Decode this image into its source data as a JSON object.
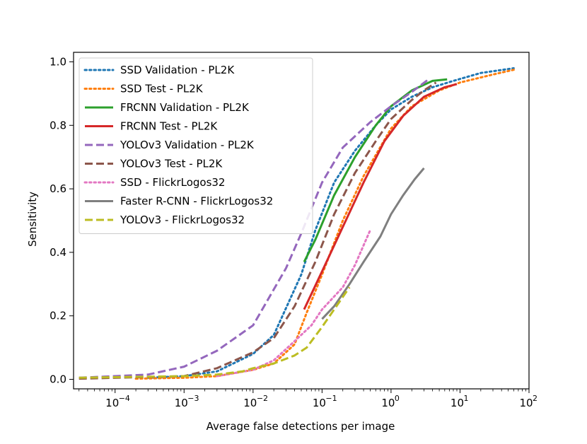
{
  "chart_data": {
    "type": "line",
    "title": "",
    "xlabel": "Average false detections per image",
    "ylabel": "Sensitivity",
    "xscale": "log",
    "xlim": [
      2.5e-05,
      100
    ],
    "ylim": [
      -0.03,
      1.03
    ],
    "grid": false,
    "legend_position": "top-left",
    "x_ticks": [
      {
        "value": 0.0001,
        "base": "10",
        "exp": "−4"
      },
      {
        "value": 0.001,
        "base": "10",
        "exp": "−3"
      },
      {
        "value": 0.01,
        "base": "10",
        "exp": "−2"
      },
      {
        "value": 0.1,
        "base": "10",
        "exp": "−1"
      },
      {
        "value": 1,
        "base": "10",
        "exp": "0"
      },
      {
        "value": 10,
        "base": "10",
        "exp": "1"
      },
      {
        "value": 100,
        "base": "10",
        "exp": "2"
      }
    ],
    "y_ticks": [
      {
        "value": 0.0,
        "label": "0.0"
      },
      {
        "value": 0.2,
        "label": "0.2"
      },
      {
        "value": 0.4,
        "label": "0.4"
      },
      {
        "value": 0.6,
        "label": "0.6"
      },
      {
        "value": 0.8,
        "label": "0.8"
      },
      {
        "value": 1.0,
        "label": "1.0"
      }
    ],
    "series": [
      {
        "name": "SSD Validation - PL2K",
        "color": "#1f77b4",
        "style": "dotted",
        "x": [
          0.0003,
          0.001,
          0.003,
          0.01,
          0.02,
          0.05,
          0.08,
          0.15,
          0.3,
          0.6,
          1,
          2,
          4,
          8,
          20,
          60
        ],
        "y": [
          0.005,
          0.01,
          0.025,
          0.08,
          0.14,
          0.33,
          0.47,
          0.62,
          0.72,
          0.8,
          0.85,
          0.89,
          0.92,
          0.94,
          0.965,
          0.98
        ]
      },
      {
        "name": "SSD Test - PL2K",
        "color": "#ff7f0e",
        "style": "dotted",
        "x": [
          0.0002,
          0.001,
          0.003,
          0.01,
          0.02,
          0.04,
          0.06,
          0.1,
          0.2,
          0.4,
          1,
          2,
          5,
          10,
          30,
          60
        ],
        "y": [
          0.002,
          0.005,
          0.01,
          0.03,
          0.05,
          0.11,
          0.21,
          0.33,
          0.5,
          0.64,
          0.79,
          0.86,
          0.91,
          0.935,
          0.96,
          0.975
        ]
      },
      {
        "name": "FRCNN Validation - PL2K",
        "color": "#2ca02c",
        "style": "solid",
        "x": [
          0.055,
          0.08,
          0.15,
          0.3,
          0.6,
          1,
          2,
          4,
          6.5
        ],
        "y": [
          0.37,
          0.44,
          0.58,
          0.7,
          0.8,
          0.86,
          0.91,
          0.94,
          0.945
        ]
      },
      {
        "name": "FRCNN Test - PL2K",
        "color": "#d62728",
        "style": "solid",
        "x": [
          0.055,
          0.1,
          0.2,
          0.4,
          0.8,
          1.5,
          3,
          6,
          9
        ],
        "y": [
          0.22,
          0.34,
          0.48,
          0.62,
          0.75,
          0.83,
          0.89,
          0.92,
          0.93
        ]
      },
      {
        "name": "YOLOv3 Validation - PL2K",
        "color": "#9467bd",
        "style": "dashed",
        "x": [
          3e-05,
          0.0003,
          0.001,
          0.003,
          0.01,
          0.03,
          0.05,
          0.1,
          0.2,
          0.5,
          1,
          2,
          3.5
        ],
        "y": [
          0.005,
          0.015,
          0.04,
          0.09,
          0.17,
          0.35,
          0.46,
          0.62,
          0.73,
          0.81,
          0.86,
          0.905,
          0.945
        ]
      },
      {
        "name": "YOLOv3 Test - PL2K",
        "color": "#8c564b",
        "style": "dashed",
        "x": [
          3e-05,
          0.001,
          0.003,
          0.01,
          0.02,
          0.04,
          0.08,
          0.15,
          0.3,
          0.6,
          1,
          2,
          3,
          4.5
        ],
        "y": [
          0.002,
          0.01,
          0.035,
          0.085,
          0.13,
          0.23,
          0.37,
          0.52,
          0.65,
          0.75,
          0.82,
          0.88,
          0.91,
          0.935
        ]
      },
      {
        "name": "SSD - FlickrLogos32",
        "color": "#e377c2",
        "style": "dotted",
        "x": [
          0.003,
          0.01,
          0.02,
          0.04,
          0.07,
          0.1,
          0.2,
          0.3,
          0.5
        ],
        "y": [
          0.01,
          0.03,
          0.06,
          0.12,
          0.17,
          0.22,
          0.29,
          0.36,
          0.47
        ]
      },
      {
        "name": "Faster R-CNN - FlickrLogos32",
        "color": "#7f7f7f",
        "style": "solid",
        "x": [
          0.1,
          0.15,
          0.25,
          0.4,
          0.7,
          1,
          1.5,
          2.2,
          3
        ],
        "y": [
          0.19,
          0.23,
          0.3,
          0.37,
          0.45,
          0.52,
          0.58,
          0.63,
          0.665
        ]
      },
      {
        "name": "YOLOv3 - FlickrLogos32",
        "color": "#bcbd22",
        "style": "dashed",
        "x": [
          3e-05,
          0.001,
          0.003,
          0.007,
          0.01,
          0.02,
          0.04,
          0.06,
          0.1,
          0.15,
          0.25
        ],
        "y": [
          0.005,
          0.01,
          0.015,
          0.025,
          0.035,
          0.05,
          0.075,
          0.1,
          0.165,
          0.22,
          0.29
        ]
      }
    ]
  }
}
